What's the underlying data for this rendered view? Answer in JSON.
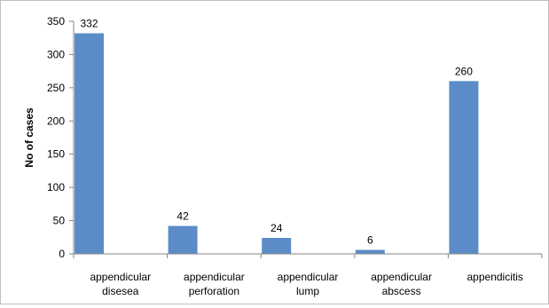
{
  "chart_data": {
    "type": "bar",
    "categories": [
      [
        "appendicular",
        "disesea"
      ],
      [
        "appendicular",
        "perforation"
      ],
      [
        "appendicular",
        "lump"
      ],
      [
        "appendicular",
        "abscess"
      ],
      [
        "appendicitis"
      ]
    ],
    "values": [
      332,
      42,
      24,
      6,
      260
    ],
    "data_labels": [
      "332",
      "42",
      "24",
      "6",
      "260"
    ],
    "ylabel": "No of cases",
    "xlabel": "",
    "title": "",
    "ylim": [
      0,
      350
    ],
    "yticks": [
      0,
      50,
      100,
      150,
      200,
      250,
      300,
      350
    ],
    "grid": false,
    "legend": "none",
    "bar_color": "#5b8cc8",
    "axis_color": "#868686"
  }
}
